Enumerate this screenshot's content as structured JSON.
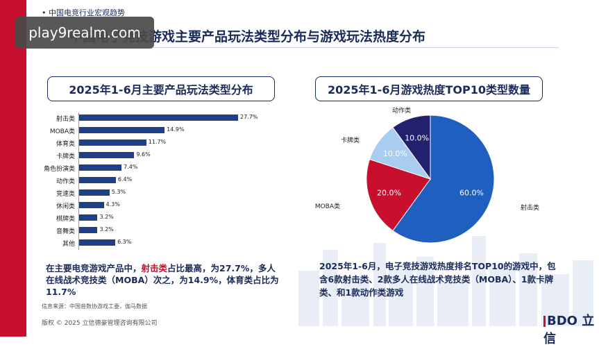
{
  "header": {
    "section_label": "• 中国电竞行业宏观趋势",
    "watermark": "play9realm.com",
    "title": "中国电子竞技游戏主要产品玩法类型分布与游戏玩法热度分布"
  },
  "left_panel": {
    "title": "2025年1-6月主要产品玩法类型分布",
    "desc_pre": "在主要电竞游戏产品中，",
    "desc_highlight": "射击类",
    "desc_post": "占比最高，为27.7%，多人在线战术竞技类（MOBA）次之，为14.9%，体育类占比为11.7%"
  },
  "right_panel": {
    "title": "2025年1-6月游戏热度TOP10类型数量",
    "desc": "2025年1-6月，电子竞技游戏热度排名TOP10的游戏中，包含6款射击类、2款多人在线战术竞技类（MOBA）、1款卡牌类、和1款动作类游戏"
  },
  "footer": {
    "source": "信息来源：中国音数协游戏工委，伽马数据",
    "copyright": "版权 © 2025 立信德豪管理咨询有限公司",
    "logo": "BDO 立信"
  },
  "colors": {
    "navy": "#1a2a5a",
    "bar": "#1f3f86",
    "red": "#c8102e",
    "pie_shooter": "#1f5fbf",
    "pie_moba": "#c8102e",
    "pie_card": "#a9cdf0",
    "pie_action": "#23206e"
  },
  "chart_data": [
    {
      "type": "bar",
      "orientation": "horizontal",
      "title": "2025年1-6月主要产品玩法类型分布",
      "categories": [
        "射击类",
        "MOBA类",
        "体育类",
        "卡牌类",
        "角色扮演类",
        "动作类",
        "竞速类",
        "休闲类",
        "棋牌类",
        "音舞类",
        "其他"
      ],
      "values": [
        27.7,
        14.9,
        11.7,
        9.6,
        7.4,
        6.4,
        5.3,
        4.3,
        3.2,
        3.2,
        6.3
      ],
      "value_labels": [
        "27.7%",
        "14.9%",
        "11.7%",
        "9.6%",
        "7.4%",
        "6.4%",
        "5.3%",
        "4.3%",
        "3.2%",
        "3.2%",
        "6.3%"
      ],
      "xlim": [
        0,
        30
      ]
    },
    {
      "type": "pie",
      "title": "2025年1-6月游戏热度TOP10类型数量",
      "categories": [
        "射击类",
        "MOBA类",
        "卡牌类",
        "动作类"
      ],
      "values": [
        60.0,
        20.0,
        10.0,
        10.0
      ],
      "value_labels": [
        "60.0%",
        "20.0%",
        "10.0%",
        "10.0%"
      ]
    }
  ]
}
